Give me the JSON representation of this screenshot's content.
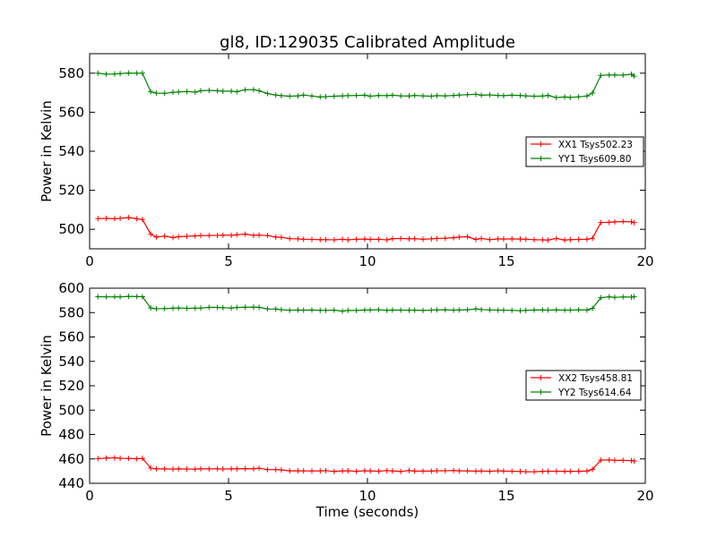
{
  "figure": {
    "title": "gl8, ID:129035 Calibrated Amplitude",
    "xlabel": "Time (seconds)"
  },
  "chart_data": [
    {
      "type": "line",
      "ylabel": "Power in Kelvin",
      "xlim": [
        0,
        20
      ],
      "ylim": [
        490,
        590
      ],
      "xticks": [
        0,
        5,
        10,
        15,
        20
      ],
      "yticks": [
        500,
        520,
        540,
        560,
        580
      ],
      "grid": false,
      "legend_position": "right",
      "x": [
        0.3,
        0.6,
        0.9,
        1.1,
        1.4,
        1.7,
        1.9,
        2.2,
        2.4,
        2.7,
        3.0,
        3.2,
        3.5,
        3.8,
        4.0,
        4.3,
        4.6,
        4.8,
        5.1,
        5.3,
        5.6,
        5.9,
        6.1,
        6.4,
        6.7,
        6.9,
        7.2,
        7.5,
        7.7,
        8.0,
        8.3,
        8.5,
        8.8,
        9.1,
        9.3,
        9.6,
        9.9,
        10.1,
        10.4,
        10.7,
        10.9,
        11.2,
        11.5,
        11.7,
        12.0,
        12.3,
        12.5,
        12.8,
        13.1,
        13.3,
        13.6,
        13.9,
        14.1,
        14.4,
        14.7,
        14.9,
        15.2,
        15.5,
        15.7,
        16.0,
        16.3,
        16.5,
        16.8,
        17.1,
        17.3,
        17.6,
        17.9,
        18.1,
        18.4,
        18.7,
        18.9,
        19.2,
        19.5,
        19.6
      ],
      "series": [
        {
          "name": "XX1 Tsys502.23",
          "color": "#ff0000",
          "values": [
            505.5,
            505.6,
            505.4,
            505.6,
            506.0,
            505.4,
            505.0,
            497.5,
            496.0,
            496.5,
            495.8,
            496.2,
            496.4,
            496.6,
            496.8,
            496.8,
            496.9,
            497.0,
            496.9,
            497.2,
            497.5,
            496.9,
            497.0,
            496.8,
            496.0,
            495.9,
            495.2,
            495.1,
            494.9,
            494.8,
            494.7,
            494.7,
            494.6,
            494.9,
            494.6,
            494.9,
            495.0,
            494.8,
            494.9,
            494.6,
            495.2,
            495.3,
            495.1,
            495.2,
            494.9,
            495.1,
            495.3,
            495.4,
            495.7,
            496.0,
            496.2,
            494.8,
            495.3,
            494.7,
            495.1,
            495.0,
            495.1,
            495.0,
            494.9,
            494.7,
            494.6,
            494.5,
            495.3,
            494.5,
            494.7,
            494.8,
            494.9,
            495.4,
            503.5,
            503.6,
            503.8,
            504.0,
            503.8,
            503.4
          ]
        },
        {
          "name": "YY1 Tsys609.80",
          "color": "#008000",
          "values": [
            580.0,
            579.5,
            579.6,
            579.8,
            580.1,
            580.0,
            580.0,
            570.5,
            569.8,
            569.7,
            570.2,
            570.4,
            570.6,
            570.3,
            571.0,
            571.2,
            571.0,
            570.8,
            570.8,
            570.5,
            571.5,
            571.6,
            571.0,
            569.6,
            568.8,
            568.5,
            568.2,
            568.4,
            568.8,
            568.3,
            567.8,
            568.0,
            568.2,
            568.4,
            568.5,
            568.6,
            568.7,
            568.2,
            568.6,
            568.5,
            568.7,
            568.4,
            568.3,
            568.6,
            568.4,
            568.2,
            568.5,
            568.4,
            568.6,
            568.8,
            569.0,
            569.2,
            568.7,
            568.9,
            568.6,
            568.5,
            568.7,
            568.6,
            568.4,
            568.2,
            568.3,
            568.6,
            567.5,
            567.8,
            567.6,
            567.9,
            568.3,
            569.8,
            578.9,
            579.1,
            579.1,
            579.0,
            579.5,
            578.5
          ]
        }
      ]
    },
    {
      "type": "line",
      "ylabel": "Power in Kelvin",
      "xlim": [
        0,
        20
      ],
      "ylim": [
        440,
        600
      ],
      "xticks": [
        0,
        5,
        10,
        15,
        20
      ],
      "yticks": [
        440,
        460,
        480,
        500,
        520,
        540,
        560,
        580,
        600
      ],
      "grid": false,
      "legend_position": "right",
      "x": [
        0.3,
        0.6,
        0.9,
        1.1,
        1.4,
        1.7,
        1.9,
        2.2,
        2.4,
        2.7,
        3.0,
        3.2,
        3.5,
        3.8,
        4.0,
        4.3,
        4.6,
        4.8,
        5.1,
        5.3,
        5.6,
        5.9,
        6.1,
        6.4,
        6.7,
        6.9,
        7.2,
        7.5,
        7.7,
        8.0,
        8.3,
        8.5,
        8.8,
        9.1,
        9.3,
        9.6,
        9.9,
        10.1,
        10.4,
        10.7,
        10.9,
        11.2,
        11.5,
        11.7,
        12.0,
        12.3,
        12.5,
        12.8,
        13.1,
        13.3,
        13.6,
        13.9,
        14.1,
        14.4,
        14.7,
        14.9,
        15.2,
        15.5,
        15.7,
        16.0,
        16.3,
        16.5,
        16.8,
        17.1,
        17.3,
        17.6,
        17.9,
        18.1,
        18.4,
        18.7,
        18.9,
        19.2,
        19.5,
        19.6
      ],
      "series": [
        {
          "name": "XX2 Tsys458.81",
          "color": "#ff0000",
          "values": [
            460.3,
            460.6,
            460.9,
            460.5,
            460.4,
            460.1,
            460.5,
            452.5,
            451.8,
            451.8,
            451.7,
            451.8,
            451.7,
            451.6,
            451.9,
            451.8,
            451.9,
            451.7,
            451.9,
            451.8,
            452.0,
            451.9,
            452.3,
            451.2,
            451.2,
            451.0,
            450.2,
            450.3,
            450.2,
            450.1,
            450.2,
            450.4,
            449.7,
            450.2,
            450.3,
            449.8,
            450.3,
            450.2,
            449.9,
            450.4,
            450.2,
            449.7,
            450.5,
            450.0,
            450.0,
            450.0,
            450.3,
            450.3,
            450.5,
            450.2,
            450.2,
            449.9,
            450.1,
            449.8,
            450.3,
            450.0,
            449.9,
            449.7,
            449.5,
            449.5,
            449.8,
            449.9,
            449.9,
            449.8,
            449.8,
            449.9,
            450.0,
            451.5,
            459.0,
            459.2,
            458.8,
            458.8,
            458.6,
            458.3
          ]
        },
        {
          "name": "YY2 Tsys614.64",
          "color": "#008000",
          "values": [
            593.0,
            592.9,
            592.9,
            592.9,
            593.3,
            593.1,
            593.0,
            583.8,
            583.1,
            583.3,
            583.6,
            583.7,
            583.5,
            583.6,
            583.7,
            584.3,
            584.2,
            584.0,
            583.7,
            584.2,
            584.4,
            584.5,
            584.3,
            583.0,
            582.9,
            582.4,
            581.9,
            582.1,
            582.0,
            582.1,
            581.8,
            581.8,
            582.0,
            581.2,
            581.8,
            581.7,
            582.1,
            582.1,
            582.4,
            581.8,
            582.1,
            582.0,
            581.9,
            582.0,
            581.7,
            582.0,
            582.2,
            582.3,
            582.0,
            582.1,
            582.3,
            583.0,
            582.5,
            582.2,
            582.0,
            582.0,
            581.8,
            581.6,
            581.8,
            582.1,
            582.2,
            582.0,
            582.2,
            582.0,
            582.0,
            582.3,
            582.0,
            583.5,
            592.2,
            592.9,
            592.5,
            592.8,
            592.7,
            593.0
          ]
        }
      ]
    }
  ]
}
